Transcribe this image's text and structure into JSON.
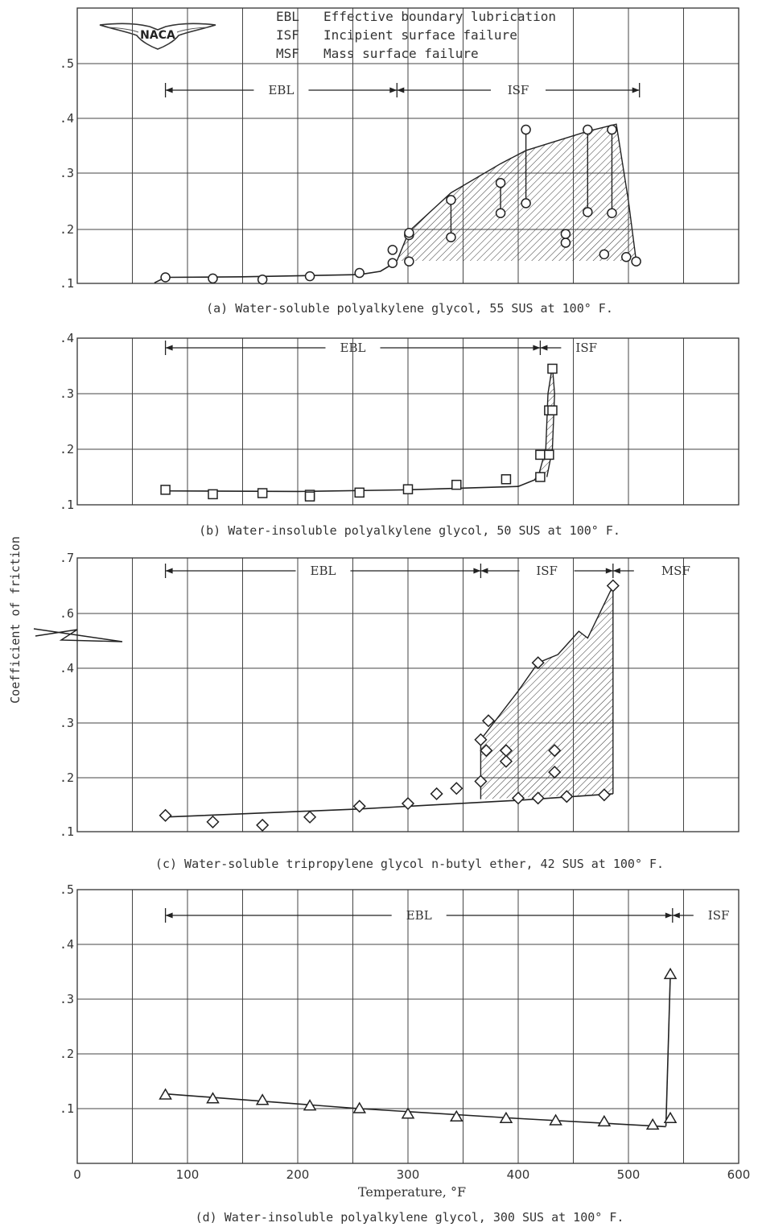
{
  "chart_data": [
    {
      "id": "a",
      "type": "scatter",
      "caption": "(a) Water-soluble polyalkylene glycol, 55 SUS at 100° F.",
      "xlim": [
        0,
        600
      ],
      "ylim": [
        0.1,
        0.5
      ],
      "yticks": [
        ".1",
        ".2",
        ".3",
        ".4",
        ".5"
      ],
      "legend": [
        {
          "abbr": "EBL",
          "text": "Effective boundary lubrication"
        },
        {
          "abbr": "ISF",
          "text": "Incipient surface failure"
        },
        {
          "abbr": "MSF",
          "text": "Mass surface failure"
        }
      ],
      "logo": "NACA",
      "regions": [
        {
          "label": "EBL",
          "from": 80,
          "to": 290
        },
        {
          "label": "ISF",
          "from": 290,
          "to": 510
        }
      ],
      "marker": "circle",
      "points": [
        [
          80,
          0.111
        ],
        [
          123,
          0.109
        ],
        [
          168,
          0.107
        ],
        [
          211,
          0.113
        ],
        [
          256,
          0.119
        ],
        [
          286,
          0.137
        ],
        [
          286,
          0.161
        ],
        [
          301,
          0.14
        ],
        [
          301,
          0.188
        ],
        [
          301,
          0.192
        ],
        [
          339,
          0.184
        ],
        [
          339,
          0.252
        ],
        [
          384,
          0.228
        ],
        [
          384,
          0.283
        ],
        [
          407,
          0.246
        ],
        [
          407,
          0.38
        ],
        [
          443,
          0.174
        ],
        [
          443,
          0.19
        ],
        [
          463,
          0.23
        ],
        [
          463,
          0.38
        ],
        [
          478,
          0.153
        ],
        [
          485,
          0.228
        ],
        [
          485,
          0.38
        ],
        [
          498,
          0.148
        ],
        [
          507,
          0.14
        ]
      ],
      "failure_pairs": [
        [
          301,
          0.188,
          0.192
        ],
        [
          339,
          0.184,
          0.252
        ],
        [
          384,
          0.228,
          0.283
        ],
        [
          407,
          0.246,
          0.38
        ],
        [
          443,
          0.174,
          0.19
        ],
        [
          463,
          0.23,
          0.38
        ],
        [
          485,
          0.228,
          0.38
        ]
      ],
      "base_curve": [
        [
          70,
          0.101
        ],
        [
          80,
          0.111
        ],
        [
          150,
          0.112
        ],
        [
          256,
          0.116
        ],
        [
          275,
          0.122
        ],
        [
          290,
          0.14
        ]
      ],
      "hatch_region": [
        [
          290,
          0.141
        ],
        [
          301,
          0.195
        ],
        [
          339,
          0.265
        ],
        [
          384,
          0.318
        ],
        [
          407,
          0.342
        ],
        [
          463,
          0.377
        ],
        [
          485,
          0.388
        ],
        [
          489,
          0.39
        ],
        [
          500,
          0.25
        ],
        [
          507,
          0.141
        ]
      ]
    },
    {
      "id": "b",
      "type": "scatter",
      "caption": "(b) Water-insoluble polyalkylene glycol, 50 SUS at 100° F.",
      "xlim": [
        0,
        600
      ],
      "ylim": [
        0.1,
        0.4
      ],
      "yticks": [
        ".1",
        ".2",
        ".3",
        ".4"
      ],
      "regions": [
        {
          "label": "EBL",
          "from": 80,
          "to": 420
        },
        {
          "label": "ISF",
          "from": 420,
          "to": 560
        }
      ],
      "marker": "square",
      "points": [
        [
          80,
          0.127
        ],
        [
          123,
          0.119
        ],
        [
          168,
          0.121
        ],
        [
          211,
          0.118
        ],
        [
          211,
          0.115
        ],
        [
          256,
          0.122
        ],
        [
          300,
          0.128
        ],
        [
          344,
          0.136
        ],
        [
          389,
          0.146
        ],
        [
          420,
          0.15
        ],
        [
          420,
          0.19
        ],
        [
          428,
          0.19
        ],
        [
          428,
          0.27
        ],
        [
          431,
          0.27
        ],
        [
          431,
          0.345
        ]
      ],
      "base_curve": [
        [
          80,
          0.125
        ],
        [
          200,
          0.124
        ],
        [
          300,
          0.127
        ],
        [
          400,
          0.133
        ],
        [
          415,
          0.145
        ],
        [
          420,
          0.16
        ]
      ],
      "hatch_region": [
        [
          418,
          0.15
        ],
        [
          425,
          0.2
        ],
        [
          427,
          0.3
        ],
        [
          431,
          0.35
        ],
        [
          433,
          0.3
        ],
        [
          431,
          0.2
        ],
        [
          426,
          0.15
        ]
      ]
    },
    {
      "id": "c",
      "type": "scatter",
      "caption": "(c) Water-soluble tripropylene glycol n-butyl ether, 42 SUS at 100° F.",
      "xlim": [
        0,
        600
      ],
      "ylim": [
        0.1,
        0.7
      ],
      "yticks": [
        ".1",
        ".2",
        ".3",
        ".4",
        ".6",
        ".7"
      ],
      "break": "between .4 and .6",
      "regions": [
        {
          "label": "EBL",
          "from": 80,
          "to": 366
        },
        {
          "label": "ISF",
          "from": 366,
          "to": 486
        },
        {
          "label": "MSF",
          "from": 486,
          "to": 600
        }
      ],
      "marker": "diamond",
      "points": [
        [
          80,
          0.13
        ],
        [
          123,
          0.118
        ],
        [
          168,
          0.112
        ],
        [
          211,
          0.127
        ],
        [
          256,
          0.147
        ],
        [
          300,
          0.152
        ],
        [
          326,
          0.17
        ],
        [
          344,
          0.18
        ],
        [
          366,
          0.193
        ],
        [
          366,
          0.27
        ],
        [
          371,
          0.25
        ],
        [
          373,
          0.305
        ],
        [
          389,
          0.25
        ],
        [
          389,
          0.23
        ],
        [
          400,
          0.162
        ],
        [
          418,
          0.42
        ],
        [
          418,
          0.162
        ],
        [
          433,
          0.25
        ],
        [
          433,
          0.21
        ],
        [
          444,
          0.165
        ],
        [
          478,
          0.168
        ],
        [
          486,
          0.65
        ]
      ],
      "base_curve": [
        [
          80,
          0.127
        ],
        [
          256,
          0.142
        ],
        [
          400,
          0.158
        ],
        [
          486,
          0.17
        ]
      ],
      "hatch_region": [
        [
          366,
          0.16
        ],
        [
          366,
          0.27
        ],
        [
          400,
          0.36
        ],
        [
          418,
          0.42
        ],
        [
          436,
          0.45
        ],
        [
          455,
          0.535
        ],
        [
          463,
          0.51
        ],
        [
          486,
          0.65
        ],
        [
          486,
          0.17
        ]
      ]
    },
    {
      "id": "d",
      "type": "scatter",
      "caption": "(d) Water-insoluble polyalkylene glycol, 300 SUS at 100° F.",
      "xlim": [
        0,
        600
      ],
      "ylim": [
        0,
        0.5
      ],
      "xticks": [
        "0",
        "100",
        "200",
        "300",
        "400",
        "500",
        "600"
      ],
      "yticks": [
        ".1",
        ".2",
        ".3",
        ".4",
        ".5"
      ],
      "xlabel": "Temperature, °F",
      "regions": [
        {
          "label": "EBL",
          "from": 80,
          "to": 540
        },
        {
          "label": "ISF",
          "from": 540,
          "to": 600
        }
      ],
      "marker": "triangle",
      "points": [
        [
          80,
          0.125
        ],
        [
          123,
          0.118
        ],
        [
          168,
          0.115
        ],
        [
          211,
          0.105
        ],
        [
          256,
          0.1
        ],
        [
          300,
          0.09
        ],
        [
          344,
          0.085
        ],
        [
          389,
          0.082
        ],
        [
          434,
          0.078
        ],
        [
          478,
          0.076
        ],
        [
          522,
          0.07
        ],
        [
          538,
          0.082
        ],
        [
          538,
          0.345
        ]
      ],
      "base_curve": [
        [
          80,
          0.127
        ],
        [
          256,
          0.1
        ],
        [
          400,
          0.082
        ],
        [
          534,
          0.067
        ]
      ],
      "jump": [
        [
          534,
          0.068
        ],
        [
          538,
          0.345
        ]
      ]
    }
  ],
  "ylabel": "Coefficient of friction"
}
